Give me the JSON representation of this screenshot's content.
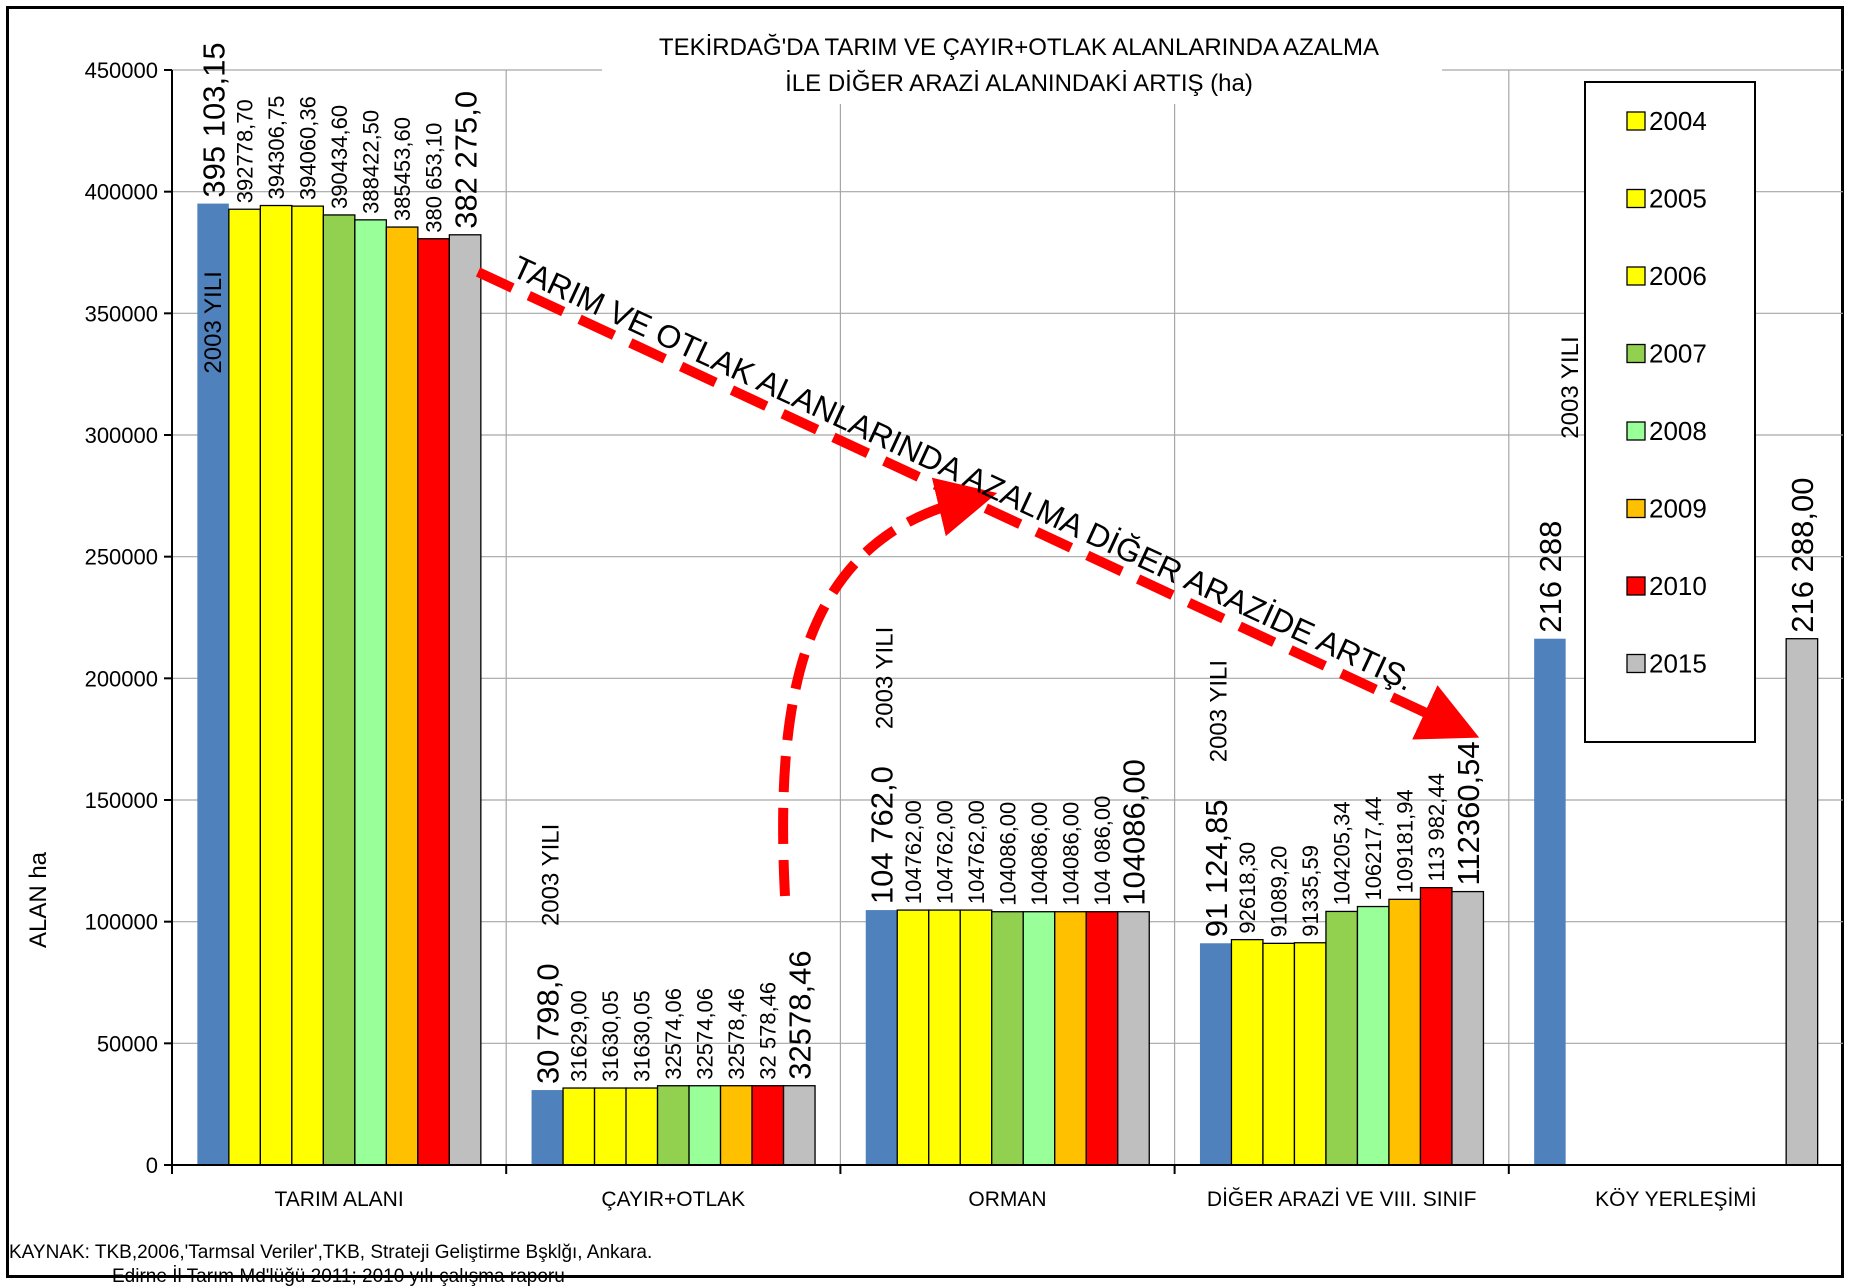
{
  "chart_data": {
    "type": "bar",
    "title_line1": "TEKİRDAĞ'DA TARIM VE ÇAYIR+OTLAK ALANLARINDA AZALMA",
    "title_line2": "İLE DİĞER ARAZİ ALANINDAKİ ARTIŞ (ha)",
    "ylabel": "ALAN  ha",
    "xlabel": "",
    "ylim": [
      0,
      450000
    ],
    "yticks": [
      0,
      50000,
      100000,
      150000,
      200000,
      250000,
      300000,
      350000,
      400000,
      450000
    ],
    "grid": true,
    "legend_position": "right",
    "categories": [
      "TARIM ALANI",
      "ÇAYIR+OTLAK",
      "ORMAN",
      "DİĞER ARAZİ VE VIII. SINIF",
      "KÖY YERLEŞİMİ"
    ],
    "series": [
      {
        "name": "",
        "color": "#4f81bd",
        "values": [
          395103.15,
          30798.0,
          104762.0,
          91124.85,
          216288
        ]
      },
      {
        "name": "2004",
        "color": "#ffff00",
        "values": [
          392778.7,
          31629.0,
          104762.0,
          92618.3,
          null
        ]
      },
      {
        "name": "2005",
        "color": "#ffff00",
        "values": [
          394306.75,
          31630.05,
          104762.0,
          91089.2,
          null
        ]
      },
      {
        "name": "2006",
        "color": "#ffff00",
        "values": [
          394060.36,
          31630.05,
          104762.0,
          91335.59,
          null
        ]
      },
      {
        "name": "2007",
        "color": "#92d050",
        "values": [
          390434.6,
          32574.06,
          104086.0,
          104205.34,
          null
        ]
      },
      {
        "name": "2008",
        "color": "#99ff99",
        "values": [
          388422.5,
          32574.06,
          104086.0,
          106217.44,
          null
        ]
      },
      {
        "name": "2009",
        "color": "#ffc000",
        "values": [
          385453.6,
          32578.46,
          104086.0,
          109181.94,
          null
        ]
      },
      {
        "name": "2010",
        "color": "#ff0000",
        "values": [
          380653.1,
          32578.46,
          104086.0,
          113982.44,
          null
        ]
      },
      {
        "name": "2015",
        "color": "#bfbfbf",
        "values": [
          382275.0,
          32578.46,
          104086.0,
          112360.54,
          216288.0
        ]
      }
    ],
    "data_labels": [
      [
        "395 103,15",
        "392778,70",
        "394306,75",
        "394060,36",
        "390434,60",
        "388422,50",
        "385453,60",
        "380 653,10",
        "382 275,0"
      ],
      [
        "30 798,0",
        "31629,00",
        "31630,05",
        "31630,05",
        "32574,06",
        "32574,06",
        "32578,46",
        "32 578,46",
        "32578,46"
      ],
      [
        "104 762,0",
        "104762,00",
        "104762,00",
        "104762,00",
        "104086,00",
        "104086,00",
        "104086,00",
        "104 086,00",
        "104086,00"
      ],
      [
        "91 124,85",
        "92618,30",
        "91089,20",
        "91335,59",
        "104205,34",
        "106217,44",
        "109181,94",
        "113 982,44",
        "112360,54"
      ],
      [
        "216 288",
        "",
        "",
        "",
        "",
        "",
        "",
        "",
        "216 288,00"
      ]
    ],
    "year_labels": [
      "2003 YILI",
      "2003 YILI",
      "2003 YILI",
      "2003 YILI",
      "2003 YILI"
    ],
    "annotation": "TARIM VE OTLAK ALANLARINDA AZALMA DİĞER ARAZİDE ARTIŞ.",
    "colors": {
      "arrow": "#ff0000",
      "grid": "#a6a6a6"
    }
  },
  "source": {
    "line1": "KAYNAK: TKB,2006,'Tarmsal Veriler',TKB, Strateji Geliştirme Bşklğı, Ankara.",
    "line2": "Edirne İl Tarım Md'lüğü 2011; 2010 yılı çalışma raporu"
  }
}
